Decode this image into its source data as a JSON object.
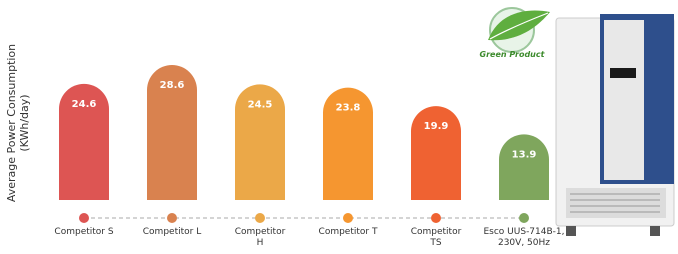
{
  "chart_data": {
    "type": "bar",
    "y_label": "Average Power Consumption (KWh/day)",
    "badge": "Green Product",
    "categories": [
      "Competitor S",
      "Competitor L",
      "Competitor H",
      "Competitor T",
      "Competitor TS",
      "Esco UUS-714B-1, 230V, 50Hz"
    ],
    "values": [
      24.6,
      28.6,
      24.5,
      23.8,
      19.9,
      13.9
    ],
    "colors": [
      "#dd5553",
      "#d9824f",
      "#eba848",
      "#f59630",
      "#ef6232",
      "#7fa65d"
    ]
  }
}
